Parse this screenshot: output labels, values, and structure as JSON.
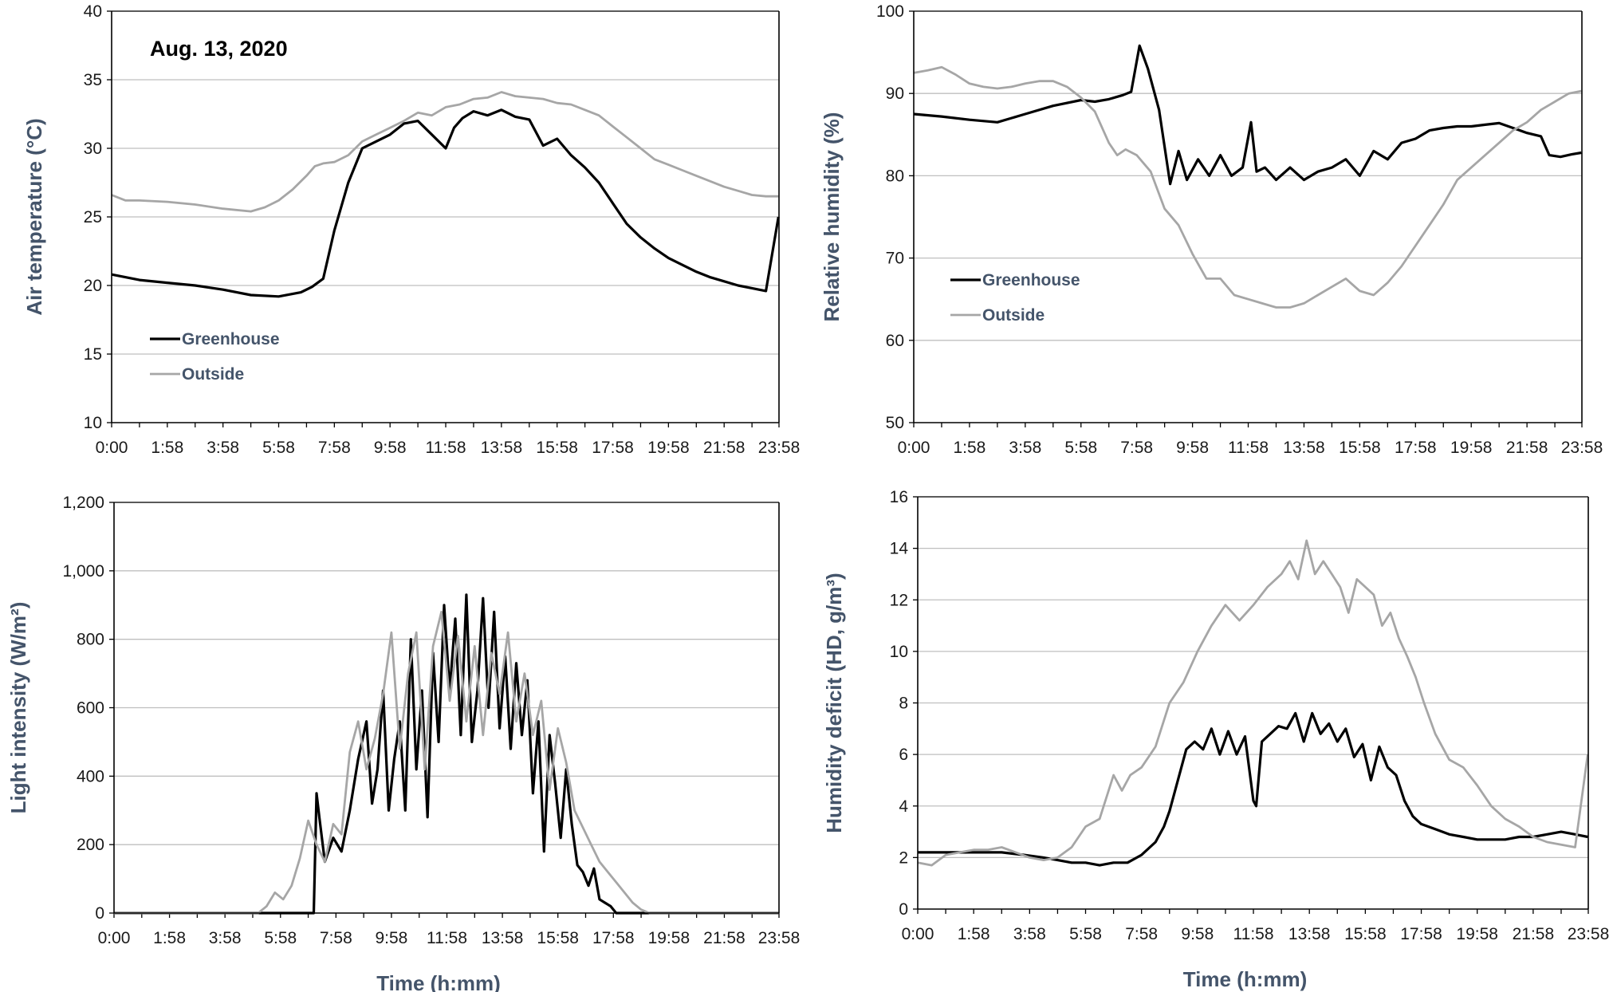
{
  "figure": {
    "x_ticks": [
      "0:00",
      "1:58",
      "3:58",
      "5:58",
      "7:58",
      "9:58",
      "11:58",
      "13:58",
      "15:58",
      "17:58",
      "19:58",
      "21:58",
      "23:58"
    ],
    "x_title": "Time (h:mm)"
  },
  "chart_data": [
    {
      "id": "air",
      "type": "line",
      "annotation": "Aug. 13, 2020",
      "xlabel": "",
      "ylabel": "Air temperature (°C)",
      "ylim": [
        10,
        40
      ],
      "yticks": [
        10,
        15,
        20,
        25,
        30,
        35,
        40
      ],
      "ytick_labels": [
        "10",
        "15",
        "20",
        "25",
        "30",
        "35",
        "40"
      ],
      "grid": true,
      "legend": "lower-left",
      "x_unit": "hours",
      "series": [
        {
          "name": "Greenhouse",
          "color": "#000000",
          "x": [
            0,
            1,
            2,
            3,
            4,
            5,
            6,
            6.8,
            7.2,
            7.6,
            8,
            8.5,
            9,
            9.5,
            10,
            10.5,
            11,
            11.5,
            12,
            12.3,
            12.6,
            13,
            13.5,
            14,
            14.5,
            15,
            15.5,
            16,
            16.5,
            17,
            17.5,
            18,
            18.5,
            19,
            19.5,
            20,
            20.5,
            21,
            21.5,
            22,
            22.5,
            23,
            23.5,
            23.95
          ],
          "y": [
            20.8,
            20.4,
            20.2,
            20,
            19.7,
            19.3,
            19.2,
            19.5,
            19.9,
            20.5,
            24,
            27.5,
            30,
            30.5,
            31,
            31.8,
            32,
            31,
            30,
            31.5,
            32.2,
            32.7,
            32.4,
            32.8,
            32.3,
            32.1,
            30.2,
            30.7,
            29.5,
            28.6,
            27.5,
            26,
            24.5,
            23.5,
            22.7,
            22,
            21.5,
            21,
            20.6,
            20.3,
            20,
            19.8,
            19.6,
            25
          ]
        },
        {
          "name": "Outside",
          "color": "#a6a6a6",
          "x": [
            0,
            0.5,
            1,
            2,
            3,
            4,
            5,
            5.5,
            6,
            6.5,
            7,
            7.3,
            7.6,
            8,
            8.5,
            9,
            9.5,
            10,
            10.5,
            11,
            11.5,
            12,
            12.5,
            13,
            13.5,
            14,
            14.5,
            15,
            15.5,
            16,
            16.5,
            17,
            17.5,
            18,
            18.5,
            19,
            19.5,
            20,
            20.5,
            21,
            21.5,
            22,
            22.5,
            23,
            23.5,
            23.95
          ],
          "y": [
            26.6,
            26.2,
            26.2,
            26.1,
            25.9,
            25.6,
            25.4,
            25.7,
            26.2,
            27,
            28,
            28.7,
            28.9,
            29,
            29.5,
            30.5,
            31,
            31.5,
            32,
            32.6,
            32.4,
            33,
            33.2,
            33.6,
            33.7,
            34.1,
            33.8,
            33.7,
            33.6,
            33.3,
            33.2,
            32.8,
            32.4,
            31.6,
            30.8,
            30,
            29.2,
            28.8,
            28.4,
            28,
            27.6,
            27.2,
            26.9,
            26.6,
            26.5,
            26.5
          ]
        }
      ]
    },
    {
      "id": "rh",
      "type": "line",
      "xlabel": "",
      "ylabel": "Relative humidity (%)",
      "ylim": [
        50,
        100
      ],
      "yticks": [
        50,
        60,
        70,
        80,
        90,
        100
      ],
      "ytick_labels": [
        "50",
        "60",
        "70",
        "80",
        "90",
        "100"
      ],
      "grid": true,
      "legend": "center-left",
      "x_unit": "hours",
      "series": [
        {
          "name": "Greenhouse",
          "color": "#000000",
          "x": [
            0,
            1,
            2,
            3,
            4,
            5,
            6,
            6.5,
            7,
            7.5,
            7.8,
            8.1,
            8.4,
            8.8,
            9.2,
            9.5,
            9.8,
            10.2,
            10.6,
            11,
            11.4,
            11.8,
            12.1,
            12.3,
            12.6,
            13,
            13.5,
            14,
            14.5,
            15,
            15.5,
            16,
            16.5,
            17,
            17.5,
            18,
            18.5,
            19,
            19.5,
            20,
            20.5,
            21,
            21.5,
            22,
            22.5,
            22.8,
            23.2,
            23.6,
            23.95
          ],
          "y": [
            87.5,
            87.2,
            86.8,
            86.5,
            87.5,
            88.5,
            89.2,
            89,
            89.3,
            89.8,
            90.2,
            95.8,
            93,
            88,
            79,
            83,
            79.5,
            82,
            80,
            82.5,
            80,
            81,
            86.5,
            80.5,
            81,
            79.5,
            81,
            79.5,
            80.5,
            81,
            82,
            80,
            83,
            82,
            84,
            84.5,
            85.5,
            85.8,
            86,
            86,
            86.2,
            86.4,
            85.8,
            85.2,
            84.8,
            82.5,
            82.3,
            82.6,
            82.8
          ]
        },
        {
          "name": "Outside",
          "color": "#a6a6a6",
          "x": [
            0,
            0.5,
            1,
            1.5,
            2,
            2.5,
            3,
            3.5,
            4,
            4.5,
            5,
            5.5,
            6,
            6.5,
            7,
            7.3,
            7.6,
            8,
            8.5,
            9,
            9.5,
            10,
            10.5,
            11,
            11.5,
            12,
            12.5,
            13,
            13.5,
            14,
            14.5,
            15,
            15.5,
            16,
            16.5,
            17,
            17.5,
            18,
            18.5,
            19,
            19.5,
            20,
            20.5,
            21,
            21.5,
            22,
            22.5,
            23,
            23.5,
            23.95
          ],
          "y": [
            92.5,
            92.8,
            93.2,
            92.3,
            91.2,
            90.8,
            90.6,
            90.8,
            91.2,
            91.5,
            91.5,
            90.8,
            89.5,
            87.8,
            84,
            82.5,
            83.2,
            82.5,
            80.5,
            76,
            74,
            70.5,
            67.5,
            67.5,
            65.5,
            65,
            64.5,
            64,
            64,
            64.5,
            65.5,
            66.5,
            67.5,
            66,
            65.5,
            67,
            69,
            71.5,
            74,
            76.5,
            79.5,
            81,
            82.5,
            84,
            85.5,
            86.5,
            88,
            89,
            90,
            90.3
          ]
        }
      ]
    },
    {
      "id": "light",
      "type": "line",
      "xlabel": "Time (h:mm)",
      "ylabel": "Light intensity (W/m²)",
      "ylim": [
        0,
        1200
      ],
      "yticks": [
        0,
        200,
        400,
        600,
        800,
        1000,
        1200
      ],
      "ytick_labels": [
        "0",
        "200",
        "400",
        "600",
        "800",
        "1,000",
        "1,200"
      ],
      "grid": true,
      "legend": "none",
      "x_unit": "hours",
      "series": [
        {
          "name": "Greenhouse",
          "color": "#000000",
          "x": [
            0,
            7.2,
            7.3,
            7.4,
            7.6,
            7.9,
            8.2,
            8.5,
            8.8,
            9.1,
            9.3,
            9.5,
            9.7,
            9.9,
            10.1,
            10.3,
            10.5,
            10.7,
            10.9,
            11.1,
            11.3,
            11.5,
            11.7,
            11.9,
            12.1,
            12.3,
            12.5,
            12.7,
            12.9,
            13.1,
            13.3,
            13.5,
            13.7,
            13.9,
            14.1,
            14.3,
            14.5,
            14.7,
            14.9,
            15.1,
            15.3,
            15.5,
            15.7,
            15.9,
            16.1,
            16.3,
            16.5,
            16.7,
            16.9,
            17.1,
            17.3,
            17.5,
            17.7,
            17.9,
            18.1,
            18.5,
            23.95
          ],
          "y": [
            0,
            0,
            350,
            280,
            150,
            220,
            180,
            300,
            450,
            560,
            320,
            420,
            650,
            300,
            450,
            560,
            300,
            800,
            420,
            650,
            280,
            760,
            500,
            900,
            650,
            860,
            520,
            930,
            500,
            650,
            920,
            600,
            880,
            540,
            750,
            480,
            730,
            520,
            680,
            350,
            560,
            180,
            520,
            380,
            220,
            420,
            260,
            140,
            120,
            80,
            130,
            40,
            30,
            20,
            0,
            0,
            0
          ]
        },
        {
          "name": "Outside",
          "color": "#a6a6a6",
          "x": [
            0,
            5.2,
            5.5,
            5.8,
            6.1,
            6.4,
            6.7,
            7,
            7.3,
            7.6,
            7.9,
            8.2,
            8.5,
            8.8,
            9.1,
            9.4,
            9.7,
            10,
            10.3,
            10.6,
            10.9,
            11.2,
            11.5,
            11.8,
            12.1,
            12.4,
            12.7,
            13,
            13.3,
            13.6,
            13.9,
            14.2,
            14.5,
            14.8,
            15.1,
            15.4,
            15.7,
            16,
            16.3,
            16.6,
            16.9,
            17.2,
            17.5,
            17.8,
            18.1,
            18.4,
            18.7,
            19,
            19.3,
            23.95
          ],
          "y": [
            0,
            0,
            20,
            60,
            40,
            80,
            160,
            270,
            200,
            150,
            260,
            230,
            470,
            560,
            420,
            510,
            640,
            820,
            480,
            700,
            820,
            420,
            780,
            880,
            620,
            810,
            560,
            780,
            520,
            760,
            640,
            820,
            560,
            700,
            520,
            620,
            360,
            540,
            440,
            300,
            250,
            200,
            150,
            120,
            90,
            60,
            30,
            10,
            0,
            0
          ]
        }
      ]
    },
    {
      "id": "hd",
      "type": "line",
      "xlabel": "Time (h:mm)",
      "ylabel": "Humidity deficit (HD,  g/m³)",
      "ylim": [
        0,
        16
      ],
      "yticks": [
        0,
        2,
        4,
        6,
        8,
        10,
        12,
        14,
        16
      ],
      "ytick_labels": [
        "0",
        "2",
        "4",
        "6",
        "8",
        "10",
        "12",
        "14",
        "16"
      ],
      "grid": true,
      "legend": "none",
      "x_unit": "hours",
      "series": [
        {
          "name": "Greenhouse",
          "color": "#000000",
          "x": [
            0,
            1,
            2,
            3,
            3.8,
            4.5,
            5,
            5.5,
            6,
            6.5,
            7,
            7.5,
            8,
            8.5,
            8.8,
            9,
            9.3,
            9.6,
            9.9,
            10.2,
            10.5,
            10.8,
            11.1,
            11.4,
            11.7,
            12,
            12.1,
            12.3,
            12.6,
            12.9,
            13.2,
            13.5,
            13.8,
            14.1,
            14.4,
            14.7,
            15,
            15.3,
            15.6,
            15.9,
            16.2,
            16.5,
            16.8,
            17.1,
            17.4,
            17.7,
            18,
            18.5,
            19,
            19.5,
            20,
            20.5,
            21,
            21.5,
            22,
            22.5,
            23,
            23.5,
            23.95
          ],
          "y": [
            2.2,
            2.2,
            2.2,
            2.2,
            2.1,
            2,
            1.9,
            1.8,
            1.8,
            1.7,
            1.8,
            1.8,
            2.1,
            2.6,
            3.2,
            3.8,
            5,
            6.2,
            6.5,
            6.2,
            7,
            6,
            6.9,
            6,
            6.7,
            4.2,
            4,
            6.5,
            6.8,
            7.1,
            7,
            7.6,
            6.5,
            7.6,
            6.8,
            7.2,
            6.5,
            7,
            5.9,
            6.4,
            5,
            6.3,
            5.5,
            5.2,
            4.2,
            3.6,
            3.3,
            3.1,
            2.9,
            2.8,
            2.7,
            2.7,
            2.7,
            2.8,
            2.8,
            2.9,
            3,
            2.9,
            2.8
          ]
        },
        {
          "name": "Outside",
          "color": "#a6a6a6",
          "x": [
            0,
            0.5,
            1,
            1.5,
            2,
            2.5,
            3,
            3.5,
            4,
            4.5,
            5,
            5.5,
            6,
            6.5,
            7,
            7.3,
            7.6,
            8,
            8.5,
            9,
            9.5,
            10,
            10.5,
            11,
            11.5,
            12,
            12.5,
            13,
            13.3,
            13.6,
            13.9,
            14.2,
            14.5,
            14.8,
            15.1,
            15.4,
            15.7,
            16,
            16.3,
            16.6,
            16.9,
            17.2,
            17.5,
            17.8,
            18.1,
            18.5,
            19,
            19.5,
            20,
            20.5,
            21,
            21.5,
            22,
            22.5,
            23,
            23.5,
            23.95
          ],
          "y": [
            1.8,
            1.7,
            2.1,
            2.2,
            2.3,
            2.3,
            2.4,
            2.2,
            2,
            1.9,
            2,
            2.4,
            3.2,
            3.5,
            5.2,
            4.6,
            5.2,
            5.5,
            6.3,
            8,
            8.8,
            10,
            11,
            11.8,
            11.2,
            11.8,
            12.5,
            13,
            13.5,
            12.8,
            14.3,
            13,
            13.5,
            13,
            12.5,
            11.5,
            12.8,
            12.5,
            12.2,
            11,
            11.5,
            10.5,
            9.8,
            9,
            8,
            6.8,
            5.8,
            5.5,
            4.8,
            4,
            3.5,
            3.2,
            2.8,
            2.6,
            2.5,
            2.4,
            6
          ]
        }
      ]
    }
  ]
}
